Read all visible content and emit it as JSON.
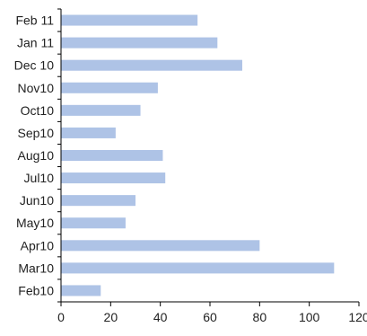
{
  "chart_data": {
    "type": "bar",
    "orientation": "horizontal",
    "categories": [
      "Feb 11",
      "Jan 11",
      "Dec 10",
      "Nov10",
      "Oct10",
      "Sep10",
      "Aug10",
      "Jul10",
      "Jun10",
      "May10",
      "Apr10",
      "Mar10",
      "Feb10"
    ],
    "values": [
      55,
      63,
      73,
      39,
      32,
      22,
      41,
      42,
      30,
      26,
      80,
      110,
      16
    ],
    "xlim": [
      0,
      120
    ],
    "xticks": [
      0,
      20,
      40,
      60,
      80,
      100,
      120
    ],
    "grid": false,
    "legend": "none",
    "bar_color": "#aec3e6",
    "axis_color": "#000000",
    "title": "",
    "xlabel": "",
    "ylabel": ""
  }
}
